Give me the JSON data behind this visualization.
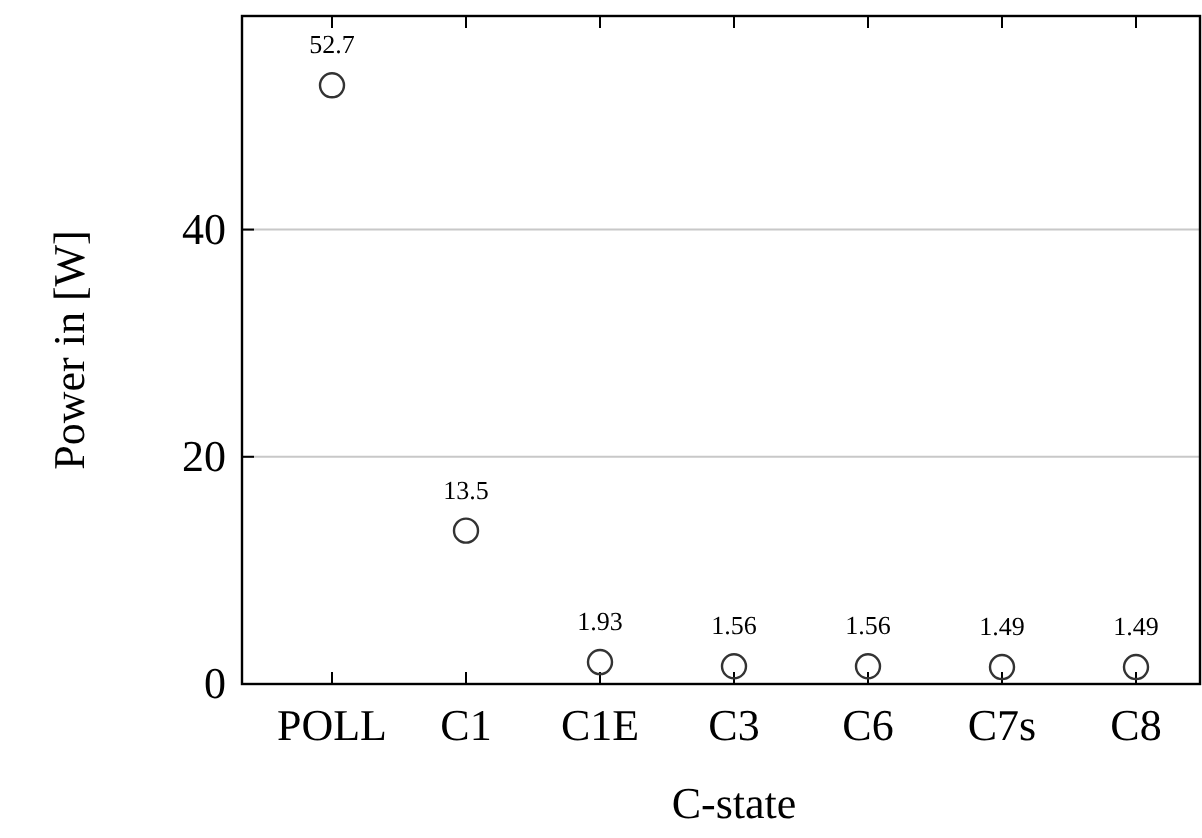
{
  "chart_data": {
    "type": "scatter",
    "xlabel": "C-state",
    "ylabel": "Power in [W]",
    "categories": [
      "POLL",
      "C1",
      "C1E",
      "C3",
      "C6",
      "C7s",
      "C8"
    ],
    "series": [
      {
        "color": "#333333",
        "values": [
          52.7,
          13.5,
          1.93,
          1.56,
          1.56,
          1.49,
          1.49
        ]
      }
    ],
    "ylim": [
      0,
      58.8
    ],
    "yticks": [
      0,
      20,
      40
    ],
    "grid": "y",
    "marker": "circle",
    "data_labels": true
  }
}
